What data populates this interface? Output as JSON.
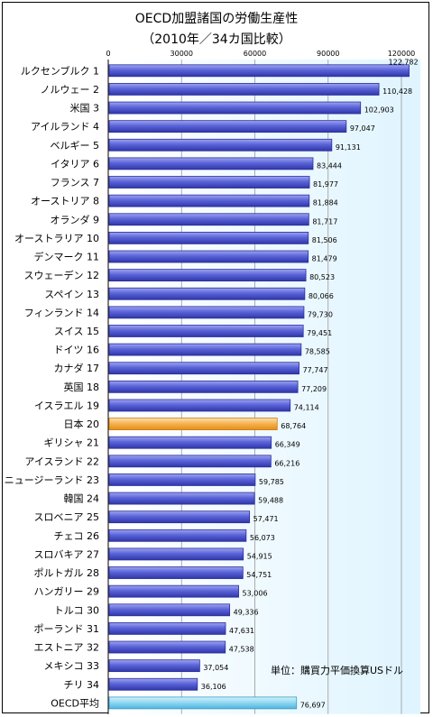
{
  "chart_data": {
    "type": "bar",
    "orientation": "horizontal",
    "title": "OECD加盟諸国の労働生産性",
    "subtitle": "（2010年／34カ国比較）",
    "unit_note": "単位：購買力平価換算USドル",
    "xlim": [
      0,
      122782
    ],
    "ticks": [
      0,
      30000,
      60000,
      90000,
      120000
    ],
    "categories": [
      "ルクセンブルク 1",
      "ノルウェー 2",
      "米国 3",
      "アイルランド 4",
      "ベルギー 5",
      "イタリア 6",
      "フランス 7",
      "オーストリア 8",
      "オランダ 9",
      "オーストラリア 10",
      "デンマーク 11",
      "スウェーデン 12",
      "スペイン 13",
      "フィンランド 14",
      "スイス 15",
      "ドイツ 16",
      "カナダ 17",
      "英国 18",
      "イスラエル 19",
      "日本 20",
      "ギリシャ 21",
      "アイスランド 22",
      "ニュージーランド 23",
      "韓国 24",
      "スロベニア 25",
      "チェコ 26",
      "スロバキア 27",
      "ポルトガル 28",
      "ハンガリー 29",
      "トルコ 30",
      "ポーランド 31",
      "エストニア 32",
      "メキシコ 33",
      "チリ 34",
      "OECD平均"
    ],
    "values": [
      122782,
      110428,
      102903,
      97047,
      91131,
      83444,
      81977,
      81884,
      81717,
      81506,
      81479,
      80523,
      80066,
      79730,
      79451,
      78585,
      77747,
      77209,
      74114,
      68764,
      66349,
      66216,
      59785,
      59488,
      57471,
      56073,
      54915,
      54751,
      53006,
      49336,
      47631,
      47538,
      37054,
      36106,
      76697
    ],
    "value_labels": [
      "122,782",
      "110,428",
      "102,903",
      "97,047",
      "91,131",
      "83,444",
      "81,977",
      "81,884",
      "81,717",
      "81,506",
      "81,479",
      "80,523",
      "80,066",
      "79,730",
      "79,451",
      "78,585",
      "77,747",
      "77,209",
      "74,114",
      "68,764",
      "66,349",
      "66,216",
      "59,785",
      "59,488",
      "57,471",
      "56,073",
      "54,915",
      "54,751",
      "53,006",
      "49,336",
      "47,631",
      "47,538",
      "37,054",
      "36,106",
      "76,697"
    ],
    "highlight": {
      "日本 20": "#f5b04a",
      "OECD平均": "#7fd0ee"
    },
    "colors": {
      "bar": "#5b64d8",
      "bar_dark": "#2a2f9a",
      "japan": "#f5b04a",
      "oecd": "#7fd0ee",
      "background_gradient": "#e6f7ff"
    }
  }
}
